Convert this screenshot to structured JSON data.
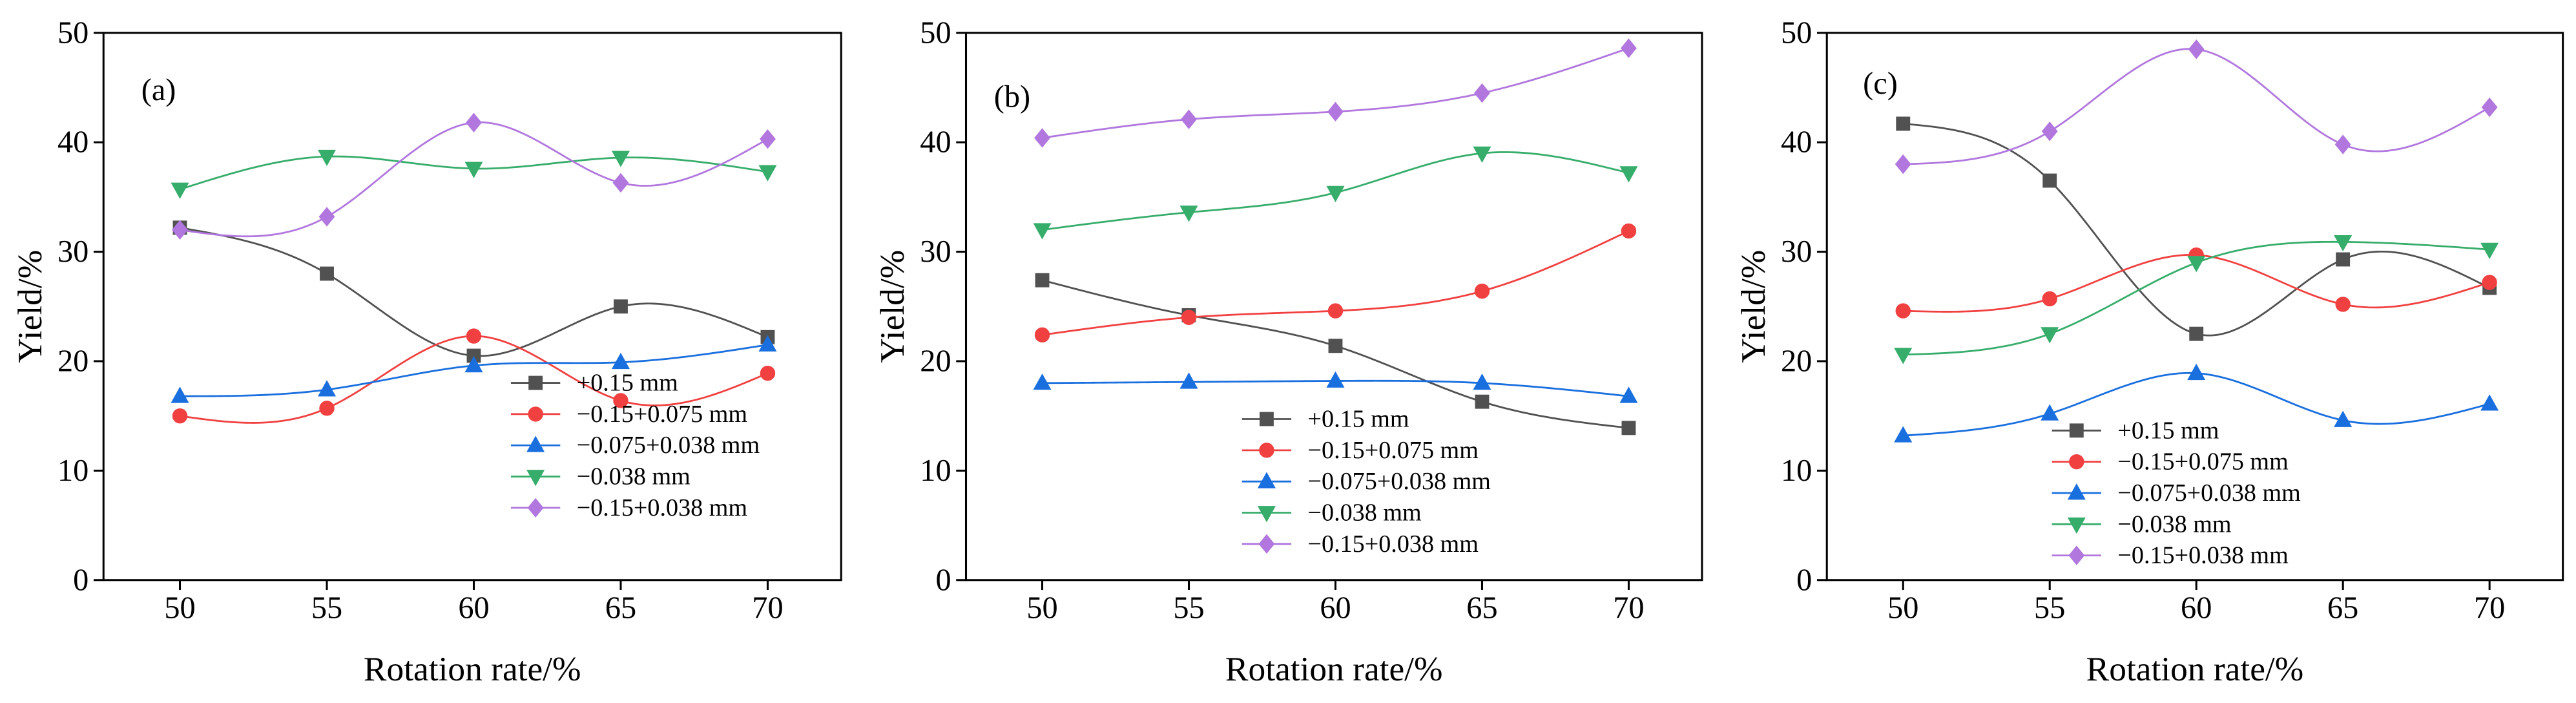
{
  "chart_data": [
    {
      "type": "line",
      "panel_label": "(a)",
      "xlabel": "Rotation rate/%",
      "ylabel": "Yield/%",
      "x": [
        50,
        55,
        60,
        65,
        70
      ],
      "xlim": [
        47.4,
        72.5
      ],
      "ylim": [
        0,
        50
      ],
      "yticks": [
        0,
        10,
        20,
        30,
        40,
        50
      ],
      "grid": false,
      "legend_position": "lower-right",
      "series": [
        {
          "name": "+0.15 mm",
          "marker": "square",
          "color": "#515151",
          "values": [
            32.2,
            28.0,
            20.5,
            25.0,
            22.2
          ]
        },
        {
          "name": "−0.15+0.075 mm",
          "marker": "circle",
          "color": "#F14040",
          "values": [
            15.0,
            15.7,
            22.3,
            16.4,
            18.9
          ]
        },
        {
          "name": "−0.075+0.038 mm",
          "marker": "triangle-up",
          "color": "#1A6FDF",
          "values": [
            16.8,
            17.4,
            19.6,
            19.9,
            21.5
          ]
        },
        {
          "name": "−0.038 mm",
          "marker": "triangle-down",
          "color": "#37AD6B",
          "values": [
            35.7,
            38.7,
            37.6,
            38.6,
            37.3
          ]
        },
        {
          "name": "−0.15+0.038 mm",
          "marker": "diamond",
          "color": "#B177DE",
          "values": [
            32.0,
            33.2,
            41.8,
            36.3,
            40.3
          ]
        }
      ]
    },
    {
      "type": "line",
      "panel_label": "(b)",
      "xlabel": "Rotation rate/%",
      "ylabel": "Yield/%",
      "x": [
        50,
        55,
        60,
        65,
        70
      ],
      "xlim": [
        47.4,
        72.5
      ],
      "ylim": [
        0,
        50
      ],
      "yticks": [
        0,
        10,
        20,
        30,
        40,
        50
      ],
      "grid": false,
      "legend_position": "lower-center",
      "series": [
        {
          "name": "+0.15 mm",
          "marker": "square",
          "color": "#515151",
          "values": [
            27.4,
            24.2,
            21.4,
            16.3,
            13.9
          ]
        },
        {
          "name": "−0.15+0.075 mm",
          "marker": "circle",
          "color": "#F14040",
          "values": [
            22.4,
            24.0,
            24.6,
            26.4,
            31.9
          ]
        },
        {
          "name": "−0.075+0.038 mm",
          "marker": "triangle-up",
          "color": "#1A6FDF",
          "values": [
            18.0,
            18.1,
            18.2,
            18.0,
            16.8
          ]
        },
        {
          "name": "−0.038 mm",
          "marker": "triangle-down",
          "color": "#37AD6B",
          "values": [
            32.0,
            33.6,
            35.4,
            39.0,
            37.2
          ]
        },
        {
          "name": "−0.15+0.038 mm",
          "marker": "diamond",
          "color": "#B177DE",
          "values": [
            40.4,
            42.1,
            42.8,
            44.5,
            48.6
          ]
        }
      ]
    },
    {
      "type": "line",
      "panel_label": "(c)",
      "xlabel": "Rotation rate/%",
      "ylabel": "Yield/%",
      "x": [
        50,
        55,
        60,
        65,
        70
      ],
      "xlim": [
        47.4,
        72.5
      ],
      "ylim": [
        0,
        50
      ],
      "yticks": [
        0,
        10,
        20,
        30,
        40,
        50
      ],
      "grid": false,
      "legend_position": "lower-center",
      "series": [
        {
          "name": "+0.15 mm",
          "marker": "square",
          "color": "#515151",
          "values": [
            41.7,
            36.5,
            22.5,
            29.3,
            26.7
          ]
        },
        {
          "name": "−0.15+0.075 mm",
          "marker": "circle",
          "color": "#F14040",
          "values": [
            24.6,
            25.7,
            29.7,
            25.2,
            27.2
          ]
        },
        {
          "name": "−0.075+0.038 mm",
          "marker": "triangle-up",
          "color": "#1A6FDF",
          "values": [
            13.2,
            15.2,
            18.9,
            14.6,
            16.1
          ]
        },
        {
          "name": "−0.038 mm",
          "marker": "triangle-down",
          "color": "#37AD6B",
          "values": [
            20.6,
            22.5,
            29.0,
            30.9,
            30.2
          ]
        },
        {
          "name": "−0.15+0.038 mm",
          "marker": "diamond",
          "color": "#B177DE",
          "values": [
            38.0,
            41.0,
            48.5,
            39.8,
            43.2
          ]
        }
      ]
    }
  ]
}
